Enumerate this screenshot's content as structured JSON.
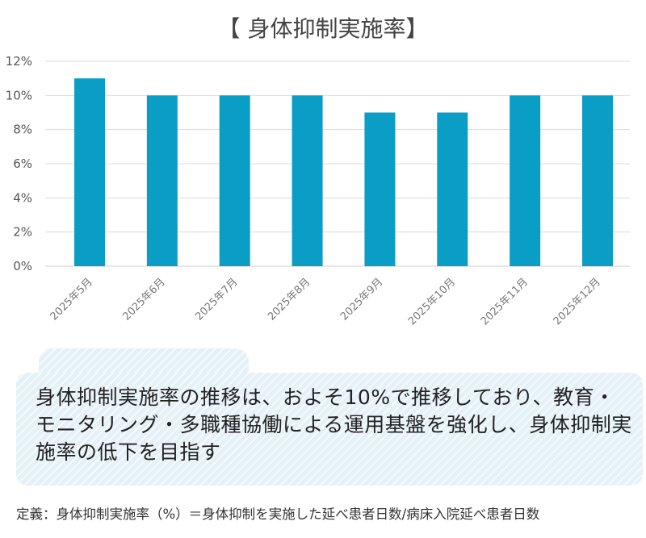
{
  "chart_data": {
    "type": "bar",
    "title": "【 身体抑制実施率】",
    "categories": [
      "2025年5月",
      "2025年6月",
      "2025年7月",
      "2025年8月",
      "2025年9月",
      "2025年10月",
      "2025年11月",
      "2025年12月"
    ],
    "values": [
      11,
      10,
      10,
      10,
      9,
      9,
      10,
      10
    ],
    "value_unit": "%",
    "ylim": [
      0,
      12
    ],
    "yticks": [
      "0%",
      "2%",
      "4%",
      "6%",
      "8%",
      "10%",
      "12%"
    ],
    "bar_color": "#0a9ec6",
    "grid": true,
    "legend": "none"
  },
  "callout": {
    "text": "身体抑制実施率の推移は、およそ10%で推移しており、教育・モニタリング・多職種協働による運用基盤を強化し、身体抑制実施率の低下を目指す"
  },
  "definition": "定義：身体抑制実施率（%）＝身体抑制を実施した延べ患者日数/病床入院延べ患者日数"
}
